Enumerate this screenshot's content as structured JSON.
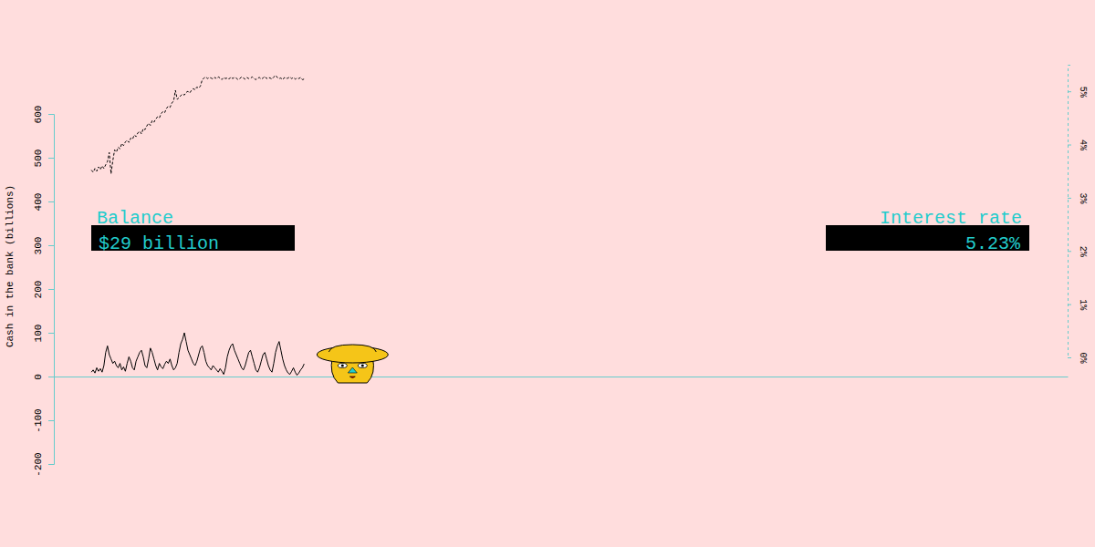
{
  "chart_data": {
    "type": "line",
    "y_label": "Cash in the bank (billions)",
    "x": [
      0,
      1,
      2,
      3,
      4,
      5,
      6,
      7,
      8,
      9,
      10,
      11,
      12,
      13,
      14,
      15,
      16,
      17,
      18,
      19,
      20,
      21,
      22,
      23,
      24,
      25,
      26,
      27,
      28,
      29,
      30,
      31,
      32,
      33,
      34,
      35,
      36,
      37,
      38,
      39,
      40,
      41,
      42,
      43,
      44,
      45,
      46,
      47,
      48,
      49,
      50,
      51,
      52,
      53,
      54,
      55,
      56,
      57,
      58,
      59,
      60,
      61,
      62,
      63,
      64,
      65,
      66,
      67,
      68,
      69,
      70,
      71,
      72,
      73,
      74,
      75,
      76,
      77,
      78,
      79,
      80,
      81,
      82,
      83,
      84,
      85,
      86,
      87,
      88,
      89,
      90,
      91,
      92,
      93,
      94,
      95,
      96,
      97,
      98,
      99,
      100,
      101,
      102,
      103,
      104,
      105,
      106,
      107,
      108,
      109,
      110,
      111,
      112,
      113,
      114,
      115,
      116,
      117,
      118,
      119
    ],
    "xlim": [
      -21,
      546
    ],
    "xticks": [],
    "ylim": [
      -200,
      600
    ],
    "yticks": [
      -200,
      -100,
      0,
      100,
      200,
      300,
      400,
      500,
      600
    ],
    "y2lim": [
      0,
      5.5
    ],
    "y2ticks": [
      {
        "value": 0,
        "label": "0%"
      },
      {
        "value": 1,
        "label": "1%"
      },
      {
        "value": 2,
        "label": "2%"
      },
      {
        "value": 3,
        "label": "3%"
      },
      {
        "value": 4,
        "label": "4%"
      },
      {
        "value": 5,
        "label": "5%"
      }
    ],
    "series": [
      {
        "name": "Balance",
        "color": "#000000",
        "line_style": "solid",
        "values": [
          10,
          15,
          8,
          20,
          12,
          18,
          10,
          25,
          55,
          70,
          50,
          40,
          30,
          35,
          25,
          20,
          30,
          15,
          22,
          12,
          30,
          45,
          35,
          20,
          15,
          35,
          45,
          55,
          60,
          45,
          25,
          20,
          40,
          65,
          55,
          40,
          25,
          15,
          30,
          22,
          18,
          28,
          35,
          30,
          40,
          25,
          15,
          20,
          30,
          55,
          75,
          85,
          100,
          80,
          60,
          50,
          40,
          30,
          25,
          35,
          50,
          65,
          70,
          55,
          35,
          25,
          20,
          15,
          25,
          20,
          15,
          10,
          18,
          12,
          5,
          20,
          45,
          60,
          70,
          75,
          60,
          50,
          40,
          30,
          20,
          15,
          25,
          40,
          55,
          60,
          45,
          30,
          15,
          10,
          20,
          35,
          50,
          55,
          40,
          25,
          15,
          10,
          30,
          55,
          70,
          80,
          60,
          40,
          25,
          15,
          8,
          5,
          12,
          20,
          10,
          3,
          8,
          15,
          20,
          29
        ]
      },
      {
        "name": "Interest rate",
        "color": "#000000",
        "line_style": "dashed",
        "axis": "y2",
        "values": [
          3.52,
          3.48,
          3.55,
          3.5,
          3.58,
          3.53,
          3.6,
          3.55,
          3.62,
          3.68,
          3.85,
          3.45,
          3.7,
          3.9,
          3.86,
          3.95,
          3.92,
          4.02,
          3.98,
          4.05,
          4.08,
          4.04,
          4.12,
          4.1,
          4.18,
          4.15,
          4.22,
          4.25,
          4.2,
          4.3,
          4.28,
          4.35,
          4.4,
          4.36,
          4.45,
          4.42,
          4.48,
          4.52,
          4.5,
          4.58,
          4.62,
          4.6,
          4.68,
          4.72,
          4.7,
          4.78,
          4.82,
          5.02,
          4.85,
          4.88,
          4.92,
          4.95,
          4.93,
          4.98,
          5.0,
          4.97,
          5.02,
          5.05,
          5.03,
          5.08,
          5.06,
          5.1,
          5.22,
          5.25,
          5.27,
          5.24,
          5.26,
          5.25,
          5.23,
          5.26,
          5.24,
          5.27,
          5.25,
          5.22,
          5.26,
          5.24,
          5.25,
          5.23,
          5.27,
          5.24,
          5.26,
          5.25,
          5.22,
          5.24,
          5.27,
          5.25,
          5.23,
          5.26,
          5.24,
          5.25,
          5.27,
          5.24,
          5.22,
          5.25,
          5.26,
          5.23,
          5.25,
          5.28,
          5.24,
          5.26,
          5.25,
          5.23,
          5.27,
          5.3,
          5.26,
          5.24,
          5.25,
          5.22,
          5.26,
          5.24,
          5.25,
          5.27,
          5.24,
          5.26,
          5.23,
          5.25,
          5.24,
          5.26,
          5.22,
          5.23
        ]
      }
    ],
    "annotations": [
      "$29 billion",
      "5.23%"
    ]
  }
}
